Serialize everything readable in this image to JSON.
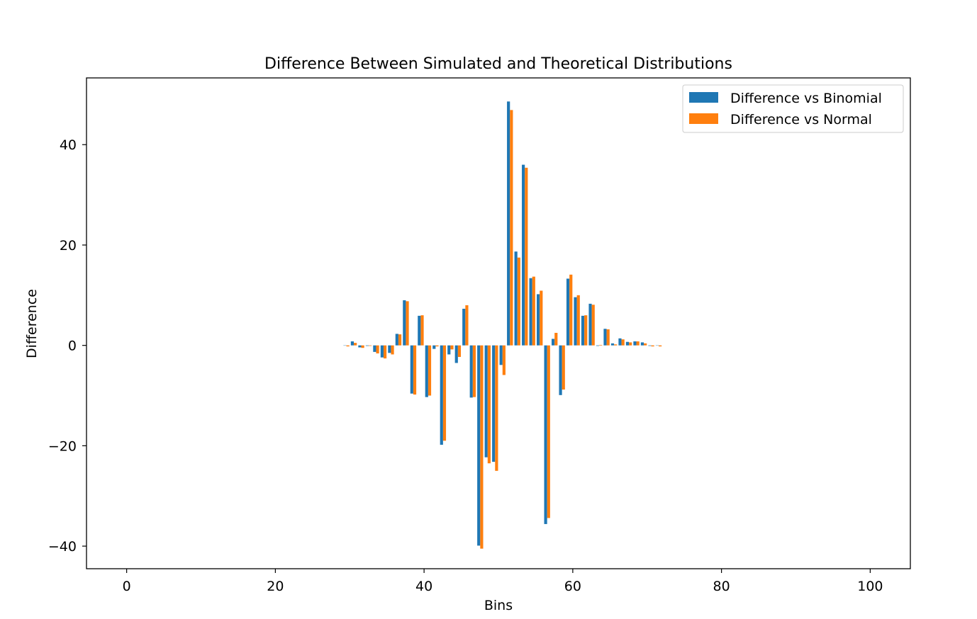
{
  "chart_data": {
    "type": "bar",
    "title": "Difference Between Simulated and Theoretical Distributions",
    "xlabel": "Bins",
    "ylabel": "Difference",
    "xlim": [
      -5.4,
      105.4
    ],
    "ylim": [
      -44.5,
      53.3
    ],
    "xticks": [
      0,
      20,
      40,
      60,
      80,
      100
    ],
    "yticks": [
      -40,
      -20,
      0,
      20,
      40
    ],
    "grid": false,
    "legend": {
      "placement": "top-right"
    },
    "x": [
      29,
      30,
      31,
      32,
      33,
      34,
      35,
      36,
      37,
      38,
      39,
      40,
      41,
      42,
      43,
      44,
      45,
      46,
      47,
      48,
      49,
      50,
      51,
      52,
      53,
      54,
      55,
      56,
      57,
      58,
      59,
      60,
      61,
      62,
      63,
      64,
      65,
      66,
      67,
      68,
      69,
      70,
      71
    ],
    "series": [
      {
        "name": "Difference vs Binomial",
        "color": "#1f77b4",
        "values": [
          0.0,
          0.8,
          -0.4,
          -0.1,
          -1.3,
          -2.4,
          -1.5,
          2.3,
          9.0,
          -9.6,
          5.9,
          -10.3,
          -0.7,
          -19.8,
          -1.8,
          -3.5,
          7.3,
          -10.4,
          -39.9,
          -22.3,
          -23.2,
          -3.9,
          48.6,
          18.7,
          36.0,
          13.4,
          10.2,
          -35.6,
          1.3,
          -9.9,
          13.3,
          9.6,
          5.9,
          8.3,
          -0.1,
          3.3,
          0.4,
          1.4,
          0.7,
          0.8,
          0.6,
          -0.1,
          0.0
        ]
      },
      {
        "name": "Difference vs Normal",
        "color": "#ff7f0e",
        "values": [
          -0.2,
          0.5,
          -0.5,
          -0.1,
          -1.6,
          -2.6,
          -1.8,
          2.2,
          8.8,
          -9.8,
          6.0,
          -10.0,
          -0.2,
          -19.0,
          -0.8,
          -2.3,
          8.0,
          -10.3,
          -40.5,
          -23.5,
          -25.0,
          -5.9,
          46.9,
          17.5,
          35.4,
          13.7,
          10.9,
          -34.4,
          2.5,
          -8.8,
          14.1,
          10.0,
          6.0,
          8.1,
          0.1,
          3.2,
          0.2,
          1.2,
          0.6,
          0.8,
          0.4,
          -0.2,
          -0.2
        ]
      }
    ]
  }
}
